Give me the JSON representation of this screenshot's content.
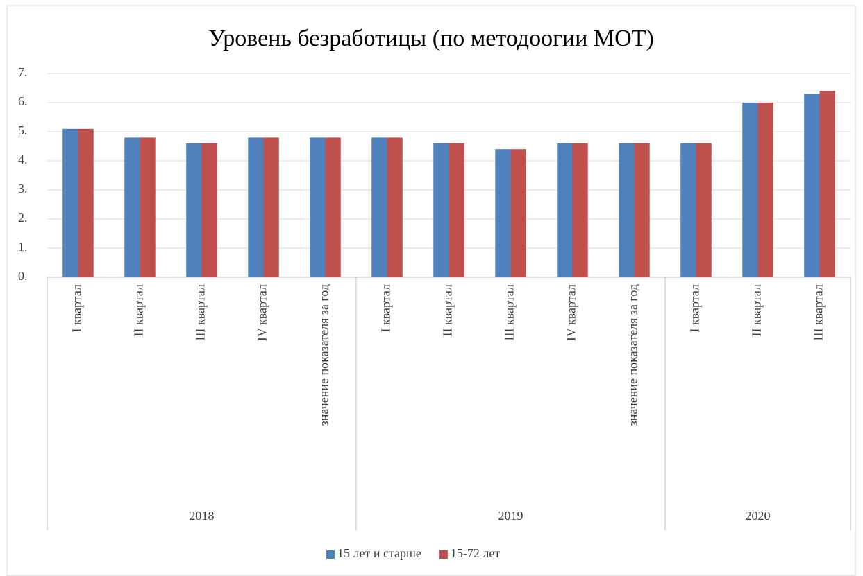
{
  "chart_data": {
    "type": "bar",
    "title": "Уровень безработицы (по методоогии МОТ)",
    "groups": [
      {
        "name": "2018",
        "categories": [
          "I квартал",
          "II квартал",
          "III квартал",
          "IV квартал",
          "значение показателя за год"
        ]
      },
      {
        "name": "2019",
        "categories": [
          "I квартал",
          "II квартал",
          "III квартал",
          "IV квартал",
          "значение показателя за год"
        ]
      },
      {
        "name": "2020",
        "categories": [
          "I квартал",
          "II квартал",
          "III квартал"
        ]
      }
    ],
    "series": [
      {
        "name": "15 лет и старше",
        "color": "#4f81bd",
        "values": [
          5.1,
          4.8,
          4.6,
          4.8,
          4.8,
          4.8,
          4.6,
          4.4,
          4.6,
          4.6,
          4.6,
          6.0,
          6.3
        ]
      },
      {
        "name": "15-72 лет",
        "color": "#c0504d",
        "values": [
          5.1,
          4.8,
          4.6,
          4.8,
          4.8,
          4.8,
          4.6,
          4.4,
          4.6,
          4.6,
          4.6,
          6.0,
          6.4
        ]
      }
    ],
    "ylim": [
      0,
      7
    ],
    "yticks": [
      {
        "value": 0,
        "label": "0."
      },
      {
        "value": 1,
        "label": "1."
      },
      {
        "value": 2,
        "label": "2."
      },
      {
        "value": 3,
        "label": "3."
      },
      {
        "value": 4,
        "label": "4."
      },
      {
        "value": 5,
        "label": "5."
      },
      {
        "value": 6,
        "label": "6."
      },
      {
        "value": 7,
        "label": "7."
      }
    ],
    "grid": true,
    "legend": "bottom"
  }
}
